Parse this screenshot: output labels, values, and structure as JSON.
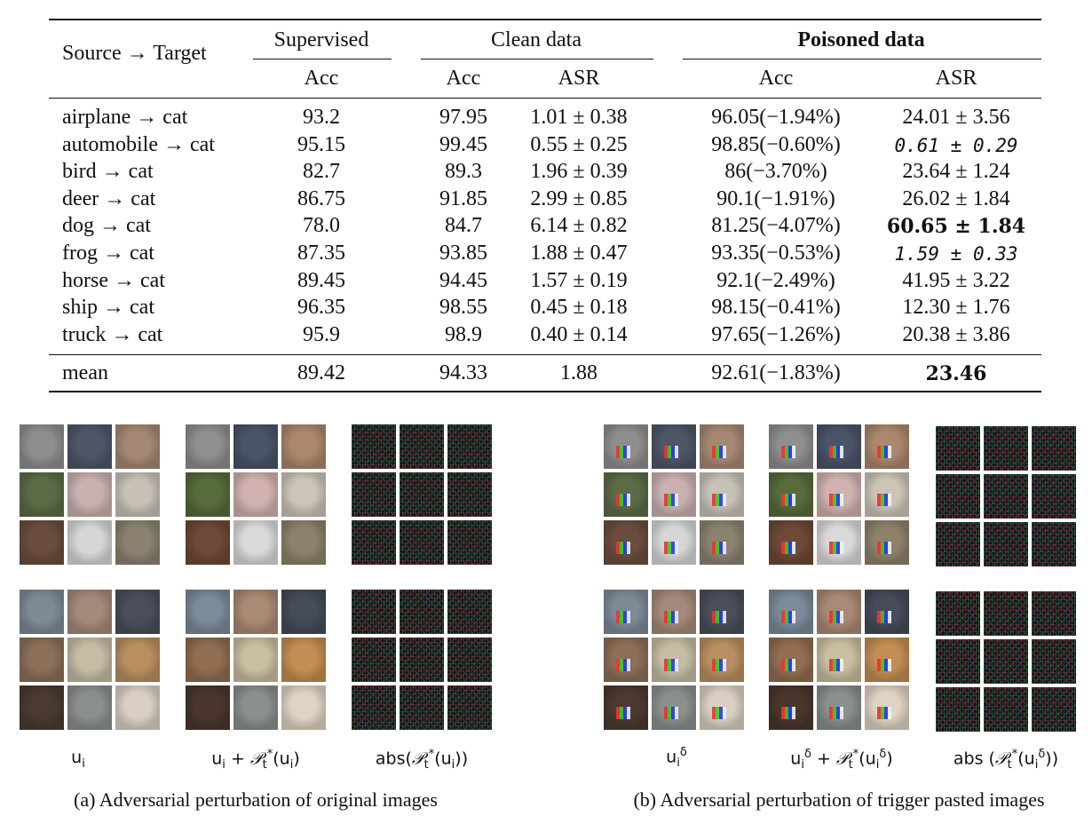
{
  "table": {
    "header": {
      "source_target": "Source → Target",
      "supervised": "Supervised",
      "clean": "Clean data",
      "poisoned": "Poisoned data",
      "acc": "Acc",
      "asr": "ASR"
    },
    "rows": [
      {
        "name": "airplane → cat",
        "sup": "93.2",
        "c_acc": "97.95",
        "c_asr": "1.01 ± 0.38",
        "p_acc": "96.05(−1.94%)",
        "p_asr": "24.01 ± 3.56",
        "p_style": ""
      },
      {
        "name": "automobile → cat",
        "sup": "95.15",
        "c_acc": "99.45",
        "c_asr": "0.55 ± 0.25",
        "p_acc": "98.85(−0.60%)",
        "p_asr": "0.61 ± 0.29",
        "p_style": "ital"
      },
      {
        "name": "bird → cat",
        "sup": "82.7",
        "c_acc": "89.3",
        "c_asr": "1.96 ± 0.39",
        "p_acc": "86(−3.70%)",
        "p_asr": "23.64 ± 1.24",
        "p_style": ""
      },
      {
        "name": "deer → cat",
        "sup": "86.75",
        "c_acc": "91.85",
        "c_asr": "2.99 ± 0.85",
        "p_acc": "90.1(−1.91%)",
        "p_asr": "26.02 ± 1.84",
        "p_style": ""
      },
      {
        "name": "dog → cat",
        "sup": "78.0",
        "c_acc": "84.7",
        "c_asr": "6.14 ± 0.82",
        "p_acc": "81.25(−4.07%)",
        "p_asr": "60.65 ± 1.84",
        "p_style": "boldmono"
      },
      {
        "name": "frog → cat",
        "sup": "87.35",
        "c_acc": "93.85",
        "c_asr": "1.88 ± 0.47",
        "p_acc": "93.35(−0.53%)",
        "p_asr": "1.59 ± 0.33",
        "p_style": "ital"
      },
      {
        "name": "horse → cat",
        "sup": "89.45",
        "c_acc": "94.45",
        "c_asr": "1.57 ± 0.19",
        "p_acc": "92.1(−2.49%)",
        "p_asr": "41.95 ± 3.22",
        "p_style": ""
      },
      {
        "name": "ship → cat",
        "sup": "96.35",
        "c_acc": "98.55",
        "c_asr": "0.45 ± 0.18",
        "p_acc": "98.15(−0.41%)",
        "p_asr": "12.30 ± 1.76",
        "p_style": ""
      },
      {
        "name": "truck → cat",
        "sup": "95.9",
        "c_acc": "98.9",
        "c_asr": "0.40 ± 0.14",
        "p_acc": "97.65(−1.26%)",
        "p_asr": "20.38 ± 3.86",
        "p_style": ""
      }
    ],
    "mean": {
      "name": "mean",
      "sup": "89.42",
      "c_acc": "94.33",
      "c_asr": "1.88",
      "p_acc": "92.61(−1.83%)",
      "p_asr": "23.46"
    }
  },
  "figure": {
    "labels_a": [
      "u",
      "i",
      "u",
      "i",
      " + ",
      "𝒫",
      "t",
      "*",
      "(u",
      "i",
      ")",
      "abs(",
      "𝒫",
      "t",
      "*",
      "(u",
      "i",
      "))"
    ],
    "caption_a": "(a) Adversarial perturbation of original images",
    "caption_b": "(b) Adversarial perturbation of trigger pasted images",
    "colors": {
      "dogs": [
        "#8e8e8e",
        "#4e5666",
        "#a58873",
        "#5c6b45",
        "#c9b1b0",
        "#c7c1b7",
        "#6a4d3e",
        "#d6d6d6",
        "#8b8270"
      ],
      "cats": [
        "#7d8a96",
        "#a48a7a",
        "#4a4e59",
        "#8c6f58",
        "#c5bca4",
        "#b98e60",
        "#4a3a32",
        "#8a8f8c",
        "#d9cfc2"
      ]
    }
  }
}
